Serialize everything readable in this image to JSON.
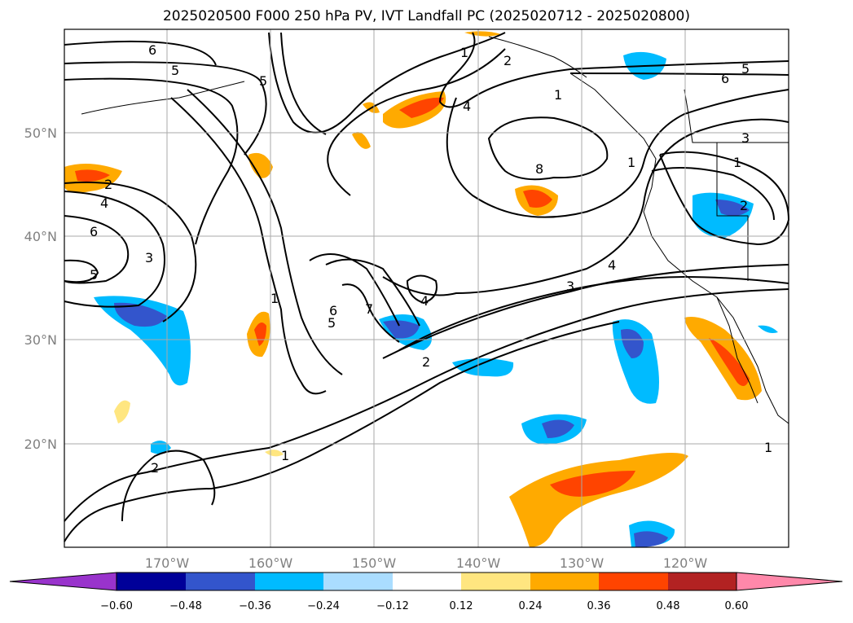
{
  "title": "2025020500 F000 250 hPa PV, IVT Landfall PC (2025020712 - 2025020800)",
  "map": {
    "lon_range": [
      -180,
      -110
    ],
    "lat_range": [
      10,
      60
    ],
    "lon_ticks": [
      "170°W",
      "160°W",
      "150°W",
      "140°W",
      "130°W",
      "120°W"
    ],
    "lat_ticks": [
      "20°N",
      "30°N",
      "40°N",
      "50°N"
    ],
    "grid": true,
    "contour_labels": [
      "6",
      "5",
      "6",
      "5",
      "1",
      "2",
      "4",
      "8",
      "1",
      "3",
      "1",
      "2",
      "3",
      "4",
      "1",
      "2",
      "4",
      "6",
      "5",
      "3",
      "5",
      "1",
      "6",
      "5",
      "7",
      "4",
      "2",
      "2",
      "1",
      "1"
    ]
  },
  "colorbar": {
    "ticks": [
      "−0.60",
      "−0.48",
      "−0.36",
      "−0.24",
      "−0.12",
      "0.12",
      "0.24",
      "0.36",
      "0.48",
      "0.60"
    ],
    "colors": [
      "#9933cc",
      "#000099",
      "#3355cc",
      "#00bbff",
      "#aaddff",
      "#ffffff",
      "#ffe680",
      "#ffaa00",
      "#ff4400",
      "#b22222",
      "#ff88aa"
    ]
  }
}
